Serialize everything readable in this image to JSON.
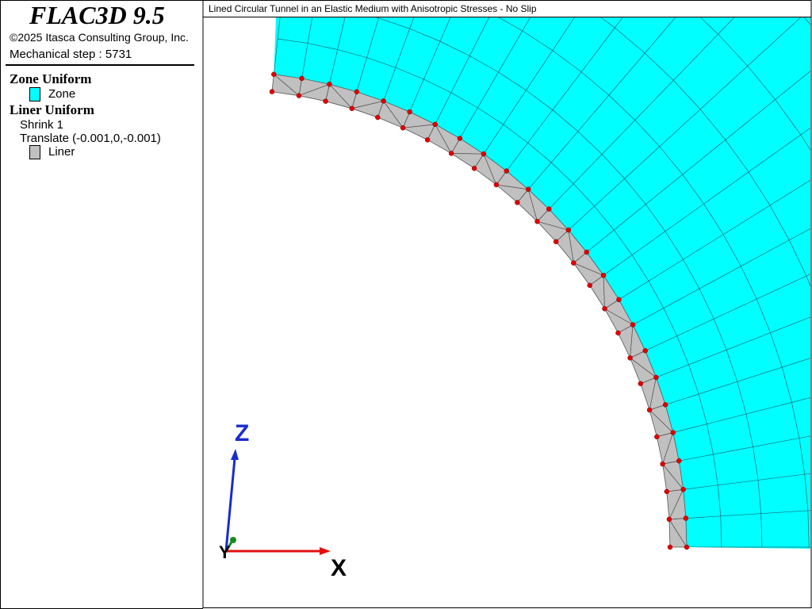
{
  "header": {
    "title": "FLAC3D 9.5",
    "copyright": "©2025 Itasca Consulting Group, Inc.",
    "step": "Mechanical step : 5731"
  },
  "legend": {
    "zone_group": "Zone Uniform",
    "zone_item": "Zone",
    "liner_group": "Liner Uniform",
    "shrink": "Shrink 1",
    "translate": "Translate (-0.001,0,-0.001)",
    "liner_item": "Liner"
  },
  "viewport": {
    "title": "Lined Circular Tunnel in an Elastic Medium with Anisotropic Stresses - No Slip",
    "axes": {
      "z": "Z",
      "y": "Y",
      "x": "X"
    }
  }
}
